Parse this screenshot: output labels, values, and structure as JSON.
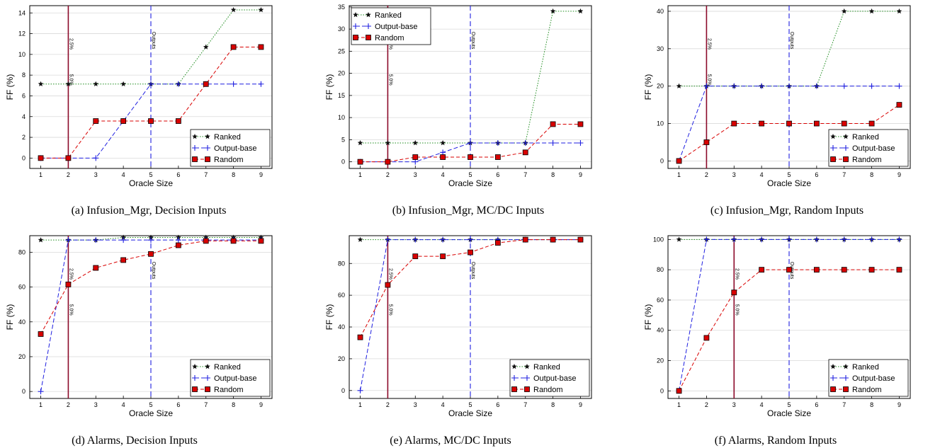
{
  "figure": {
    "series_names": [
      "Ranked",
      "Output-base",
      "Random"
    ],
    "colors": {
      "Ranked": "#1a8a1a",
      "Output-base": "#1f1fe0",
      "Random": "#d90000",
      "vline_solid": "#8b0a2a",
      "vline_dashed": "#1f1fe0"
    }
  },
  "chart_data": [
    {
      "type": "line",
      "caption": "(a) Infusion_Mgr, Decision Inputs",
      "xlabel": "Oracle Size",
      "ylabel": "FF (%)",
      "x": [
        1,
        2,
        3,
        4,
        5,
        6,
        7,
        8,
        9
      ],
      "xlim": [
        0.6,
        9.4
      ],
      "ylim": [
        -1,
        14.7
      ],
      "yticks": [
        0,
        2,
        4,
        6,
        8,
        10,
        12,
        14
      ],
      "series": [
        {
          "name": "Ranked",
          "values": [
            7.14,
            7.14,
            7.14,
            7.14,
            7.14,
            7.14,
            10.71,
            14.29,
            14.29
          ]
        },
        {
          "name": "Output-base",
          "values": [
            0,
            0,
            0,
            3.57,
            7.14,
            7.14,
            7.14,
            7.14,
            7.14
          ]
        },
        {
          "name": "Random",
          "values": [
            0,
            0,
            3.57,
            3.57,
            3.57,
            3.57,
            7.14,
            10.71,
            10.71
          ]
        }
      ],
      "vlines": [
        {
          "x": 2,
          "style": "solid",
          "labels": [
            "2.5%",
            "5.0%"
          ]
        },
        {
          "x": 5,
          "style": "dashed",
          "labels": [
            "Outputs"
          ]
        }
      ],
      "grid": true,
      "legend": "bottom-right"
    },
    {
      "type": "line",
      "caption": "(b) Infusion_Mgr, MC/DC Inputs",
      "xlabel": "Oracle Size",
      "ylabel": "FF (%)",
      "x": [
        1,
        2,
        3,
        4,
        5,
        6,
        7,
        8,
        9
      ],
      "xlim": [
        0.6,
        9.4
      ],
      "ylim": [
        -1.5,
        35.3
      ],
      "yticks": [
        0,
        5,
        10,
        15,
        20,
        25,
        30,
        35
      ],
      "series": [
        {
          "name": "Ranked",
          "values": [
            4.26,
            4.26,
            4.26,
            4.26,
            4.26,
            4.26,
            4.26,
            34.04,
            34.04
          ]
        },
        {
          "name": "Output-base",
          "values": [
            0,
            0,
            0,
            2.13,
            4.26,
            4.26,
            4.26,
            4.26,
            4.26
          ]
        },
        {
          "name": "Random",
          "values": [
            0,
            0,
            1.06,
            1.06,
            1.06,
            1.06,
            2.13,
            8.51,
            8.51
          ]
        }
      ],
      "vlines": [
        {
          "x": 2,
          "style": "solid",
          "labels": [
            "2.5%",
            "5.0%"
          ]
        },
        {
          "x": 5,
          "style": "dashed",
          "labels": [
            "Outputs"
          ]
        }
      ],
      "grid": true,
      "legend": "top-left"
    },
    {
      "type": "line",
      "caption": "(c) Infusion_Mgr, Random Inputs",
      "xlabel": "Oracle Size",
      "ylabel": "FF (%)",
      "x": [
        1,
        2,
        3,
        4,
        5,
        6,
        7,
        8,
        9
      ],
      "xlim": [
        0.6,
        9.4
      ],
      "ylim": [
        -2,
        41.5
      ],
      "yticks": [
        0,
        10,
        20,
        30,
        40
      ],
      "series": [
        {
          "name": "Ranked",
          "values": [
            20,
            20,
            20,
            20,
            20,
            20,
            40,
            40,
            40
          ]
        },
        {
          "name": "Output-base",
          "values": [
            0,
            20,
            20,
            20,
            20,
            20,
            20,
            20,
            20
          ]
        },
        {
          "name": "Random",
          "values": [
            0,
            5,
            10,
            10,
            10,
            10,
            10,
            10,
            15
          ]
        }
      ],
      "vlines": [
        {
          "x": 2,
          "style": "solid",
          "labels": [
            "2.5%",
            "5.0%"
          ]
        },
        {
          "x": 5,
          "style": "dashed",
          "labels": [
            "Outputs"
          ]
        }
      ],
      "grid": true,
      "legend": "bottom-right"
    },
    {
      "type": "line",
      "caption": "(d) Alarms, Decision Inputs",
      "xlabel": "Oracle Size",
      "ylabel": "FF (%)",
      "x": [
        1,
        2,
        3,
        4,
        5,
        6,
        7,
        8,
        9
      ],
      "xlim": [
        0.6,
        9.4
      ],
      "ylim": [
        -4,
        89.5
      ],
      "yticks": [
        0,
        20,
        40,
        60,
        80
      ],
      "series": [
        {
          "name": "Ranked",
          "values": [
            87,
            87,
            87,
            88.5,
            88.5,
            88.5,
            88.5,
            88.5,
            88.5
          ]
        },
        {
          "name": "Output-base",
          "values": [
            0,
            87,
            87,
            87,
            87,
            87,
            87,
            87,
            87
          ]
        },
        {
          "name": "Random",
          "values": [
            33,
            61.5,
            71,
            75.5,
            79,
            84,
            86.5,
            86.5,
            86.5
          ]
        }
      ],
      "vlines": [
        {
          "x": 2,
          "style": "solid",
          "labels": [
            "2.5%",
            "5.0%"
          ]
        },
        {
          "x": 5,
          "style": "dashed",
          "labels": [
            "Outputs"
          ]
        }
      ],
      "grid": true,
      "legend": "bottom-right"
    },
    {
      "type": "line",
      "caption": "(e) Alarms, MC/DC Inputs",
      "xlabel": "Oracle Size",
      "ylabel": "FF (%)",
      "x": [
        1,
        2,
        3,
        4,
        5,
        6,
        7,
        8,
        9
      ],
      "xlim": [
        0.6,
        9.4
      ],
      "ylim": [
        -5,
        97.5
      ],
      "yticks": [
        0,
        20,
        40,
        60,
        80
      ],
      "series": [
        {
          "name": "Ranked",
          "values": [
            95,
            95,
            95,
            95,
            95,
            95,
            95,
            95,
            95
          ]
        },
        {
          "name": "Output-base",
          "values": [
            0,
            95,
            95,
            95,
            95,
            95,
            95,
            95,
            95
          ]
        },
        {
          "name": "Random",
          "values": [
            33.5,
            66.5,
            84.5,
            84.5,
            87,
            93,
            95,
            95,
            95
          ]
        }
      ],
      "vlines": [
        {
          "x": 2,
          "style": "solid",
          "labels": [
            "2.5%",
            "5.0%"
          ]
        },
        {
          "x": 5,
          "style": "dashed",
          "labels": [
            "Outputs"
          ]
        }
      ],
      "grid": true,
      "legend": "bottom-right"
    },
    {
      "type": "line",
      "caption": "(f) Alarms, Random Inputs",
      "xlabel": "Oracle Size",
      "ylabel": "FF (%)",
      "x": [
        1,
        2,
        3,
        4,
        5,
        6,
        7,
        8,
        9
      ],
      "xlim": [
        0.6,
        9.4
      ],
      "ylim": [
        -5,
        102.5
      ],
      "yticks": [
        0,
        20,
        40,
        60,
        80,
        100
      ],
      "series": [
        {
          "name": "Ranked",
          "values": [
            100,
            100,
            100,
            100,
            100,
            100,
            100,
            100,
            100
          ]
        },
        {
          "name": "Output-base",
          "values": [
            0,
            100,
            100,
            100,
            100,
            100,
            100,
            100,
            100
          ]
        },
        {
          "name": "Random",
          "values": [
            0,
            35,
            65,
            80,
            80,
            80,
            80,
            80,
            80
          ]
        }
      ],
      "vlines": [
        {
          "x": 3,
          "style": "solid",
          "labels": [
            "2.5%",
            "5.0%"
          ]
        },
        {
          "x": 5,
          "style": "dashed",
          "labels": [
            "Outputs"
          ]
        }
      ],
      "grid": true,
      "legend": "bottom-right"
    }
  ]
}
